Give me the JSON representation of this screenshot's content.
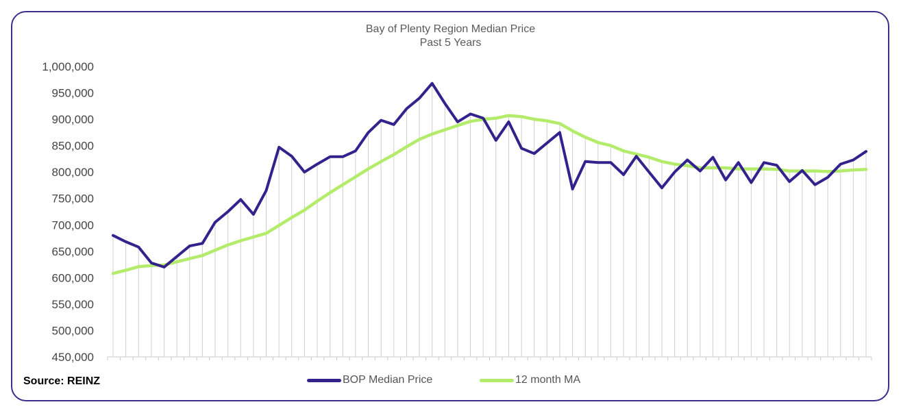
{
  "chart_data": {
    "type": "line",
    "title": "Bay of Plenty Region Median Price",
    "subtitle": "Past 5 Years",
    "ylim": [
      450000,
      1000000
    ],
    "yticks": [
      "1,000,000",
      "950,000",
      "900,000",
      "850,000",
      "800,000",
      "750,000",
      "700,000",
      "650,000",
      "600,000",
      "550,000",
      "500,000",
      "450,000"
    ],
    "ytick_values": [
      1000000,
      950000,
      900000,
      850000,
      800000,
      750000,
      700000,
      650000,
      600000,
      550000,
      500000,
      450000
    ],
    "grid": "vertical",
    "legend_position": "bottom",
    "series": [
      {
        "name": "BOP Median Price",
        "color": "#33228c",
        "values": [
          680000,
          668000,
          658000,
          628000,
          620000,
          640000,
          660000,
          665000,
          705000,
          725000,
          748000,
          720000,
          765000,
          847000,
          830000,
          800000,
          815000,
          829000,
          829000,
          840000,
          875000,
          898000,
          890000,
          920000,
          940000,
          968000,
          930000,
          895000,
          910000,
          902000,
          860000,
          895000,
          845000,
          835000,
          855000,
          875000,
          768000,
          820000,
          818000,
          818000,
          795000,
          830000,
          800000,
          770000,
          800000,
          823000,
          802000,
          828000,
          785000,
          818000,
          780000,
          818000,
          813000,
          782000,
          803000,
          776000,
          790000,
          815000,
          823000,
          839000
        ]
      },
      {
        "name": "12 month MA",
        "color": "#b3ec6a",
        "values": [
          608000,
          614000,
          621000,
          623000,
          624000,
          630000,
          636000,
          642000,
          652000,
          662000,
          670000,
          677000,
          684000,
          699000,
          714000,
          728000,
          745000,
          761000,
          776000,
          791000,
          806000,
          820000,
          833000,
          848000,
          862000,
          872000,
          880000,
          888000,
          896000,
          900000,
          902000,
          907000,
          905000,
          900000,
          897000,
          892000,
          878000,
          866000,
          856000,
          850000,
          840000,
          834000,
          828000,
          820000,
          815000,
          812000,
          808000,
          808000,
          808000,
          806000,
          806000,
          806000,
          805000,
          802000,
          802000,
          802000,
          801000,
          802000,
          804000,
          805000
        ]
      }
    ]
  },
  "source_label": "Source: REINZ"
}
